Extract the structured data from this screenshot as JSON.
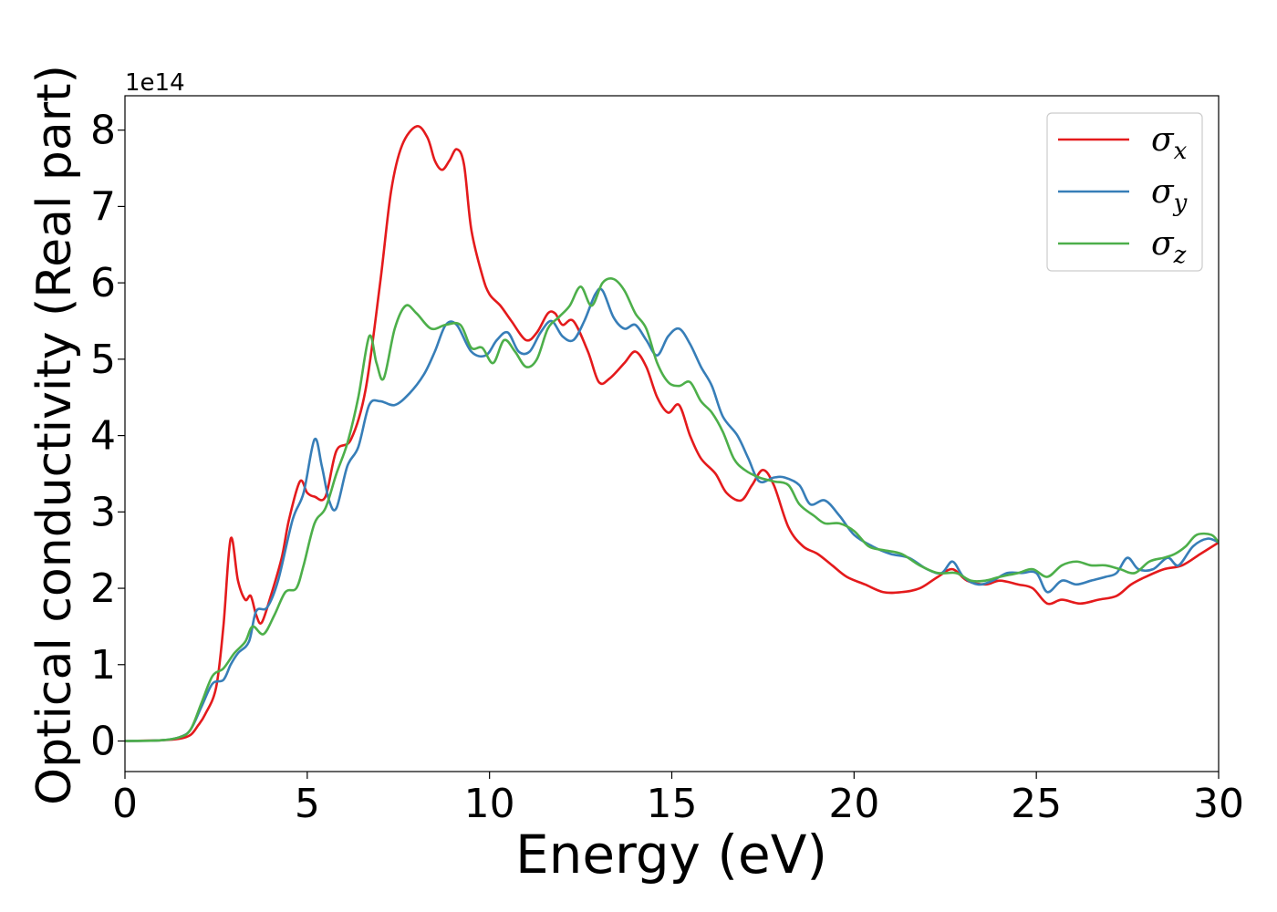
{
  "chart_data": {
    "type": "line",
    "xlabel": "Energy (eV)",
    "ylabel": "Optical conductivity (Real part)",
    "y_offset_text": "1e14",
    "y_scale": 100000000000000.0,
    "xlim": [
      0,
      30
    ],
    "ylim": [
      -0.4,
      8.45
    ],
    "x_ticks": [
      0,
      5,
      10,
      15,
      20,
      25,
      30
    ],
    "y_ticks": [
      0,
      1,
      2,
      3,
      4,
      5,
      6,
      7,
      8
    ],
    "grid": false,
    "legend_position": "top-right",
    "series": [
      {
        "name": "σx",
        "name_symbol": "σ",
        "name_subscript": "x",
        "color": "#e41a1c",
        "points": [
          [
            0,
            0
          ],
          [
            1,
            0.01
          ],
          [
            1.5,
            0.03
          ],
          [
            1.8,
            0.08
          ],
          [
            2.0,
            0.2
          ],
          [
            2.2,
            0.35
          ],
          [
            2.5,
            0.7
          ],
          [
            2.7,
            1.5
          ],
          [
            2.9,
            2.65
          ],
          [
            3.1,
            2.1
          ],
          [
            3.3,
            1.85
          ],
          [
            3.45,
            1.9
          ],
          [
            3.6,
            1.65
          ],
          [
            3.75,
            1.55
          ],
          [
            4.0,
            1.9
          ],
          [
            4.3,
            2.4
          ],
          [
            4.5,
            2.9
          ],
          [
            4.8,
            3.4
          ],
          [
            5.0,
            3.25
          ],
          [
            5.2,
            3.2
          ],
          [
            5.5,
            3.2
          ],
          [
            5.8,
            3.8
          ],
          [
            6.2,
            3.95
          ],
          [
            6.6,
            4.6
          ],
          [
            7.0,
            6.0
          ],
          [
            7.3,
            7.2
          ],
          [
            7.6,
            7.8
          ],
          [
            8.0,
            8.05
          ],
          [
            8.3,
            7.9
          ],
          [
            8.5,
            7.6
          ],
          [
            8.7,
            7.48
          ],
          [
            8.9,
            7.6
          ],
          [
            9.1,
            7.75
          ],
          [
            9.3,
            7.55
          ],
          [
            9.5,
            6.7
          ],
          [
            9.8,
            6.1
          ],
          [
            10.0,
            5.85
          ],
          [
            10.3,
            5.7
          ],
          [
            10.6,
            5.5
          ],
          [
            11.0,
            5.25
          ],
          [
            11.3,
            5.35
          ],
          [
            11.6,
            5.6
          ],
          [
            11.8,
            5.6
          ],
          [
            12.0,
            5.45
          ],
          [
            12.3,
            5.5
          ],
          [
            12.7,
            5.1
          ],
          [
            13.0,
            4.7
          ],
          [
            13.3,
            4.75
          ],
          [
            13.7,
            4.95
          ],
          [
            14.0,
            5.1
          ],
          [
            14.3,
            4.9
          ],
          [
            14.6,
            4.5
          ],
          [
            14.9,
            4.3
          ],
          [
            15.2,
            4.4
          ],
          [
            15.5,
            4.0
          ],
          [
            15.8,
            3.7
          ],
          [
            16.2,
            3.5
          ],
          [
            16.5,
            3.25
          ],
          [
            16.9,
            3.15
          ],
          [
            17.2,
            3.35
          ],
          [
            17.5,
            3.55
          ],
          [
            17.8,
            3.35
          ],
          [
            18.2,
            2.8
          ],
          [
            18.6,
            2.55
          ],
          [
            19.0,
            2.45
          ],
          [
            19.4,
            2.3
          ],
          [
            19.8,
            2.15
          ],
          [
            20.3,
            2.05
          ],
          [
            20.8,
            1.95
          ],
          [
            21.3,
            1.95
          ],
          [
            21.8,
            2.0
          ],
          [
            22.3,
            2.15
          ],
          [
            22.7,
            2.25
          ],
          [
            23.1,
            2.1
          ],
          [
            23.6,
            2.05
          ],
          [
            24.0,
            2.1
          ],
          [
            24.5,
            2.05
          ],
          [
            24.9,
            2.0
          ],
          [
            25.3,
            1.8
          ],
          [
            25.7,
            1.85
          ],
          [
            26.2,
            1.8
          ],
          [
            26.7,
            1.85
          ],
          [
            27.2,
            1.9
          ],
          [
            27.6,
            2.05
          ],
          [
            28.0,
            2.15
          ],
          [
            28.5,
            2.25
          ],
          [
            29.0,
            2.3
          ],
          [
            29.5,
            2.45
          ],
          [
            30.0,
            2.6
          ]
        ]
      },
      {
        "name": "σy",
        "name_symbol": "σ",
        "name_subscript": "y",
        "color": "#377eb8",
        "points": [
          [
            0,
            0
          ],
          [
            1,
            0.01
          ],
          [
            1.5,
            0.05
          ],
          [
            1.8,
            0.15
          ],
          [
            2.1,
            0.45
          ],
          [
            2.4,
            0.75
          ],
          [
            2.7,
            0.8
          ],
          [
            2.9,
            1.0
          ],
          [
            3.1,
            1.15
          ],
          [
            3.4,
            1.3
          ],
          [
            3.6,
            1.7
          ],
          [
            3.9,
            1.75
          ],
          [
            4.2,
            2.1
          ],
          [
            4.6,
            2.9
          ],
          [
            4.9,
            3.25
          ],
          [
            5.2,
            3.95
          ],
          [
            5.4,
            3.6
          ],
          [
            5.6,
            3.15
          ],
          [
            5.8,
            3.05
          ],
          [
            6.1,
            3.6
          ],
          [
            6.4,
            3.85
          ],
          [
            6.7,
            4.4
          ],
          [
            7.0,
            4.45
          ],
          [
            7.4,
            4.4
          ],
          [
            7.8,
            4.55
          ],
          [
            8.2,
            4.8
          ],
          [
            8.5,
            5.1
          ],
          [
            8.8,
            5.45
          ],
          [
            9.1,
            5.45
          ],
          [
            9.5,
            5.1
          ],
          [
            9.9,
            5.05
          ],
          [
            10.2,
            5.25
          ],
          [
            10.5,
            5.35
          ],
          [
            10.8,
            5.1
          ],
          [
            11.1,
            5.1
          ],
          [
            11.4,
            5.35
          ],
          [
            11.7,
            5.5
          ],
          [
            12.0,
            5.3
          ],
          [
            12.3,
            5.25
          ],
          [
            12.6,
            5.5
          ],
          [
            12.9,
            5.85
          ],
          [
            13.1,
            5.9
          ],
          [
            13.4,
            5.55
          ],
          [
            13.7,
            5.4
          ],
          [
            14.0,
            5.45
          ],
          [
            14.3,
            5.25
          ],
          [
            14.6,
            5.05
          ],
          [
            14.9,
            5.3
          ],
          [
            15.2,
            5.4
          ],
          [
            15.5,
            5.2
          ],
          [
            15.8,
            4.9
          ],
          [
            16.1,
            4.65
          ],
          [
            16.4,
            4.25
          ],
          [
            16.8,
            4.0
          ],
          [
            17.1,
            3.7
          ],
          [
            17.4,
            3.4
          ],
          [
            17.8,
            3.45
          ],
          [
            18.1,
            3.45
          ],
          [
            18.5,
            3.35
          ],
          [
            18.8,
            3.1
          ],
          [
            19.2,
            3.15
          ],
          [
            19.6,
            2.95
          ],
          [
            20.0,
            2.7
          ],
          [
            20.5,
            2.55
          ],
          [
            21.0,
            2.45
          ],
          [
            21.5,
            2.4
          ],
          [
            22.0,
            2.25
          ],
          [
            22.4,
            2.2
          ],
          [
            22.7,
            2.35
          ],
          [
            23.0,
            2.15
          ],
          [
            23.4,
            2.05
          ],
          [
            23.8,
            2.1
          ],
          [
            24.2,
            2.2
          ],
          [
            24.6,
            2.2
          ],
          [
            25.0,
            2.2
          ],
          [
            25.3,
            1.95
          ],
          [
            25.7,
            2.1
          ],
          [
            26.1,
            2.05
          ],
          [
            26.5,
            2.1
          ],
          [
            26.9,
            2.15
          ],
          [
            27.2,
            2.2
          ],
          [
            27.5,
            2.4
          ],
          [
            27.8,
            2.25
          ],
          [
            28.2,
            2.25
          ],
          [
            28.6,
            2.4
          ],
          [
            28.9,
            2.3
          ],
          [
            29.3,
            2.55
          ],
          [
            29.7,
            2.65
          ],
          [
            30.0,
            2.6
          ]
        ]
      },
      {
        "name": "σz",
        "name_symbol": "σ",
        "name_subscript": "z",
        "color": "#4daf4a",
        "points": [
          [
            0,
            0
          ],
          [
            1,
            0.01
          ],
          [
            1.5,
            0.05
          ],
          [
            1.8,
            0.15
          ],
          [
            2.1,
            0.5
          ],
          [
            2.4,
            0.85
          ],
          [
            2.7,
            0.95
          ],
          [
            3.0,
            1.15
          ],
          [
            3.3,
            1.3
          ],
          [
            3.5,
            1.5
          ],
          [
            3.8,
            1.4
          ],
          [
            4.1,
            1.65
          ],
          [
            4.4,
            1.95
          ],
          [
            4.7,
            2.0
          ],
          [
            4.9,
            2.3
          ],
          [
            5.2,
            2.85
          ],
          [
            5.5,
            3.05
          ],
          [
            5.8,
            3.5
          ],
          [
            6.1,
            3.9
          ],
          [
            6.4,
            4.5
          ],
          [
            6.7,
            5.3
          ],
          [
            6.9,
            4.95
          ],
          [
            7.1,
            4.75
          ],
          [
            7.4,
            5.4
          ],
          [
            7.7,
            5.7
          ],
          [
            8.0,
            5.6
          ],
          [
            8.4,
            5.4
          ],
          [
            8.8,
            5.45
          ],
          [
            9.2,
            5.45
          ],
          [
            9.5,
            5.15
          ],
          [
            9.8,
            5.15
          ],
          [
            10.1,
            4.95
          ],
          [
            10.4,
            5.25
          ],
          [
            10.7,
            5.1
          ],
          [
            11.0,
            4.9
          ],
          [
            11.3,
            5.0
          ],
          [
            11.6,
            5.4
          ],
          [
            11.9,
            5.55
          ],
          [
            12.2,
            5.7
          ],
          [
            12.5,
            5.95
          ],
          [
            12.8,
            5.7
          ],
          [
            13.1,
            6.0
          ],
          [
            13.4,
            6.05
          ],
          [
            13.7,
            5.9
          ],
          [
            14.0,
            5.6
          ],
          [
            14.3,
            5.4
          ],
          [
            14.6,
            4.95
          ],
          [
            14.9,
            4.7
          ],
          [
            15.2,
            4.65
          ],
          [
            15.5,
            4.7
          ],
          [
            15.8,
            4.45
          ],
          [
            16.1,
            4.3
          ],
          [
            16.4,
            4.05
          ],
          [
            16.7,
            3.7
          ],
          [
            17.0,
            3.55
          ],
          [
            17.4,
            3.45
          ],
          [
            17.8,
            3.4
          ],
          [
            18.2,
            3.35
          ],
          [
            18.5,
            3.1
          ],
          [
            18.9,
            2.95
          ],
          [
            19.2,
            2.85
          ],
          [
            19.6,
            2.85
          ],
          [
            20.0,
            2.75
          ],
          [
            20.4,
            2.55
          ],
          [
            20.8,
            2.5
          ],
          [
            21.3,
            2.45
          ],
          [
            21.8,
            2.3
          ],
          [
            22.3,
            2.2
          ],
          [
            22.8,
            2.2
          ],
          [
            23.2,
            2.1
          ],
          [
            23.6,
            2.1
          ],
          [
            24.0,
            2.15
          ],
          [
            24.5,
            2.2
          ],
          [
            24.9,
            2.25
          ],
          [
            25.3,
            2.15
          ],
          [
            25.7,
            2.3
          ],
          [
            26.1,
            2.35
          ],
          [
            26.5,
            2.3
          ],
          [
            26.9,
            2.3
          ],
          [
            27.3,
            2.25
          ],
          [
            27.7,
            2.2
          ],
          [
            28.1,
            2.35
          ],
          [
            28.5,
            2.4
          ],
          [
            28.8,
            2.45
          ],
          [
            29.1,
            2.55
          ],
          [
            29.4,
            2.7
          ],
          [
            29.8,
            2.7
          ],
          [
            30.0,
            2.6
          ]
        ]
      }
    ]
  }
}
